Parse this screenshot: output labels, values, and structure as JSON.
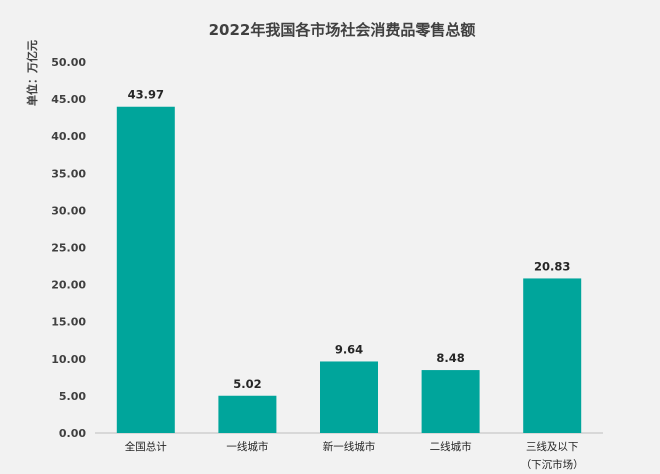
{
  "chart_data": {
    "type": "bar",
    "title": "2022年我国各市场社会消费品零售总额",
    "ylabel": "单位：万亿元",
    "xlabel": "",
    "categories": [
      "全国总计",
      "一线城市",
      "新一线城市",
      "二线城市",
      "三线及以下\n（下沉市场）"
    ],
    "values": [
      43.97,
      5.02,
      9.64,
      8.48,
      20.83
    ],
    "value_labels": [
      "43.97",
      "5.02",
      "9.64",
      "8.48",
      "20.83"
    ],
    "ylim": [
      0,
      50
    ],
    "yticks": [
      "0.00",
      "5.00",
      "10.00",
      "15.00",
      "20.00",
      "25.00",
      "30.00",
      "35.00",
      "40.00",
      "45.00",
      "50.00"
    ],
    "ytick_values": [
      0,
      5,
      10,
      15,
      20,
      25,
      30,
      35,
      40,
      45,
      50
    ],
    "bar_color": "#00a59b",
    "grid": false,
    "legend": "none"
  }
}
